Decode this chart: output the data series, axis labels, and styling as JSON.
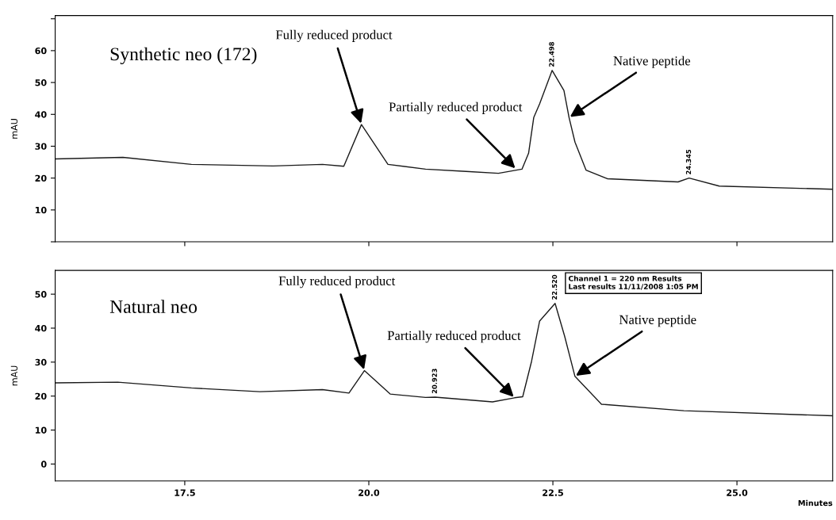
{
  "chart_data": [
    {
      "type": "line",
      "title": "Synthetic neo (172)",
      "ylabel": "mAU",
      "xlim": [
        15.74,
        26.3
      ],
      "ylim": [
        0,
        71
      ],
      "yticks": [
        {
          "value": 0,
          "label": null
        },
        10,
        20,
        30,
        40,
        50,
        60,
        {
          "value": 70,
          "label": null
        }
      ],
      "xticks": [
        17.5,
        20.0,
        22.5,
        25.0
      ],
      "tick_labels": "y",
      "grid": false,
      "legend": false,
      "series": [
        {
          "color": "#1a1a1a",
          "x": [
            15.74,
            16.66,
            17.59,
            18.7,
            19.37,
            19.66,
            19.9,
            20.26,
            20.77,
            21.32,
            21.76,
            22.08,
            22.17,
            22.24,
            22.32,
            22.49,
            22.65,
            22.72,
            22.8,
            22.95,
            23.24,
            24.2,
            24.35,
            24.76,
            26.3
          ],
          "values": [
            26.0,
            26.5,
            24.3,
            23.8,
            24.3,
            23.7,
            36.8,
            24.3,
            22.8,
            22.1,
            21.5,
            22.8,
            27.8,
            39.0,
            43.3,
            53.8,
            47.5,
            39.0,
            31.3,
            22.5,
            19.8,
            18.8,
            20.0,
            17.5,
            16.5
          ]
        }
      ],
      "annotations": [
        {
          "text": "Fully reduced product",
          "x": 19.9,
          "y": 36.8
        },
        {
          "text": "Partially reduced product",
          "x": 22.0,
          "y": 22.8
        },
        {
          "text": "Native peptide",
          "x": 22.72,
          "y": 39.0
        },
        {
          "text": "22.498",
          "x": 22.49,
          "y": 53.8
        },
        {
          "text": "24.345",
          "x": 24.35,
          "y": 20.0
        }
      ]
    },
    {
      "type": "line",
      "title": "Natural neo",
      "ylabel": "mAU",
      "xlabel": "Minutes",
      "xlim": [
        15.74,
        26.3
      ],
      "ylim": [
        -5,
        57
      ],
      "yticks": [
        0,
        10,
        20,
        30,
        40,
        50
      ],
      "xticks": [
        {
          "value": 17.5,
          "label": "17.5"
        },
        {
          "value": 20.0,
          "label": "20.0"
        },
        {
          "value": 22.5,
          "label": "22.5"
        },
        {
          "value": 25.0,
          "label": "25.0"
        }
      ],
      "grid": false,
      "legend": false,
      "series": [
        {
          "color": "#1a1a1a",
          "x": [
            15.74,
            16.59,
            17.59,
            18.52,
            19.37,
            19.73,
            19.94,
            20.29,
            20.77,
            20.9,
            21.68,
            21.98,
            22.09,
            22.21,
            22.32,
            22.53,
            22.66,
            22.8,
            23.16,
            24.28,
            26.3
          ],
          "values": [
            23.9,
            24.1,
            22.4,
            21.3,
            21.9,
            20.9,
            27.5,
            20.6,
            19.6,
            19.7,
            18.3,
            19.5,
            19.8,
            30.2,
            42.1,
            47.3,
            37.6,
            25.8,
            17.6,
            15.7,
            14.2
          ]
        }
      ],
      "annotations": [
        {
          "text": "Fully reduced product",
          "x": 19.94,
          "y": 27.5
        },
        {
          "text": "Partially reduced product",
          "x": 21.98,
          "y": 19.5
        },
        {
          "text": "Native peptide",
          "x": 22.8,
          "y": 25.8
        },
        {
          "text": "20.923",
          "x": 20.9,
          "y": 19.7
        },
        {
          "text": "22.520",
          "x": 22.53,
          "y": 47.3
        },
        "Channel 1 = 220 nm Results",
        "Last results 11/11/2008 1:05 PM"
      ]
    }
  ]
}
